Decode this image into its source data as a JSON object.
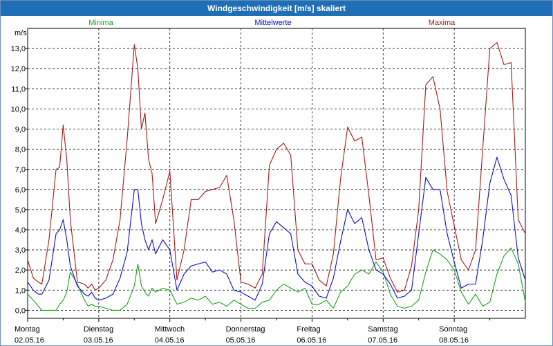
{
  "window": {
    "title": "Windgeschwindigkeit [m/s] skaliert"
  },
  "colors": {
    "minima": "#1aa31a",
    "mittel": "#0a0ad0",
    "maxima": "#a81818",
    "title_bg": "#1f6fb6"
  },
  "chart_data": {
    "type": "line",
    "title": "Windgeschwindigkeit [m/s] skaliert",
    "ylabel": "m/s",
    "xlabel": "",
    "ylim": [
      -0.4,
      14.0
    ],
    "yticks": [
      "0,0",
      "1,0",
      "2,0",
      "3,0",
      "4,0",
      "5,0",
      "6,0",
      "7,0",
      "8,0",
      "9,0",
      "10,0",
      "11,0",
      "12,0",
      "13,0"
    ],
    "ytick_values": [
      0,
      1,
      2,
      3,
      4,
      5,
      6,
      7,
      8,
      9,
      10,
      11,
      12,
      13
    ],
    "grid": true,
    "days": [
      {
        "name": "Montag",
        "date": "02.05.16"
      },
      {
        "name": "Dienstag",
        "date": "03.05.16"
      },
      {
        "name": "Mittwoch",
        "date": "04.05.16"
      },
      {
        "name": "Donnerstag",
        "date": "05.05.16"
      },
      {
        "name": "Freitag",
        "date": "06.05.16"
      },
      {
        "name": "Samstag",
        "date": "07.05.16"
      },
      {
        "name": "Sonntag",
        "date": "08.05.16"
      }
    ],
    "xlim": [
      0,
      7
    ],
    "series": [
      {
        "name": "Minima",
        "color": "#1aa31a",
        "x": [
          0,
          0.08,
          0.15,
          0.2,
          0.3,
          0.4,
          0.45,
          0.5,
          0.55,
          0.6,
          0.7,
          0.8,
          0.85,
          0.9,
          0.95,
          1.0,
          1.1,
          1.2,
          1.3,
          1.4,
          1.5,
          1.55,
          1.6,
          1.65,
          1.7,
          1.75,
          1.8,
          1.9,
          2.0,
          2.1,
          2.2,
          2.3,
          2.4,
          2.5,
          2.6,
          2.7,
          2.8,
          2.9,
          3.0,
          3.1,
          3.2,
          3.3,
          3.4,
          3.5,
          3.6,
          3.7,
          3.8,
          3.9,
          4.0,
          4.1,
          4.2,
          4.3,
          4.4,
          4.5,
          4.6,
          4.7,
          4.8,
          4.9,
          5.0,
          5.1,
          5.2,
          5.3,
          5.4,
          5.5,
          5.6,
          5.7,
          5.8,
          5.9,
          6.0,
          6.1,
          6.2,
          6.3,
          6.4,
          6.5,
          6.6,
          6.7,
          6.8,
          6.9,
          7.0
        ],
        "y": [
          0.8,
          0.5,
          0.2,
          0,
          0,
          0,
          0.3,
          0.5,
          0.9,
          1.9,
          1.3,
          0.5,
          0.2,
          0.3,
          0.2,
          0.2,
          0.1,
          0,
          0,
          0.3,
          1.2,
          2.3,
          1.2,
          0.9,
          0.7,
          1.1,
          0.9,
          1.1,
          1.0,
          0.3,
          0.4,
          0.6,
          0.5,
          0.7,
          0.3,
          0.4,
          0.2,
          0.5,
          0.3,
          0.1,
          0.1,
          0.4,
          0.5,
          1.0,
          1.3,
          1.1,
          0.9,
          1.1,
          0.3,
          0.3,
          0.5,
          0.1,
          0.9,
          1.2,
          1.8,
          2.0,
          1.8,
          2.4,
          1.9,
          0.8,
          0.2,
          0.1,
          0.2,
          0.5,
          1.9,
          3.0,
          2.8,
          2.5,
          2.0,
          0.9,
          0.3,
          0.8,
          0.2,
          0.4,
          1.8,
          2.7,
          3.1,
          2.3,
          0.4
        ]
      },
      {
        "name": "Mittelwerte",
        "color": "#0a0ad0",
        "x": [
          0,
          0.08,
          0.15,
          0.2,
          0.3,
          0.4,
          0.45,
          0.5,
          0.55,
          0.6,
          0.7,
          0.8,
          0.85,
          0.9,
          0.95,
          1.0,
          1.1,
          1.2,
          1.3,
          1.4,
          1.5,
          1.55,
          1.6,
          1.65,
          1.7,
          1.75,
          1.8,
          1.9,
          2.0,
          2.1,
          2.2,
          2.3,
          2.4,
          2.5,
          2.6,
          2.7,
          2.8,
          2.9,
          3.0,
          3.1,
          3.2,
          3.3,
          3.4,
          3.5,
          3.6,
          3.7,
          3.8,
          3.9,
          4.0,
          4.1,
          4.2,
          4.3,
          4.4,
          4.5,
          4.6,
          4.7,
          4.8,
          4.9,
          5.0,
          5.1,
          5.2,
          5.3,
          5.4,
          5.5,
          5.6,
          5.7,
          5.8,
          5.9,
          6.0,
          6.1,
          6.2,
          6.3,
          6.4,
          6.5,
          6.6,
          6.7,
          6.8,
          6.9,
          7.0
        ],
        "y": [
          1.4,
          1.0,
          0.8,
          0.8,
          1.5,
          3.8,
          4.0,
          4.5,
          3.5,
          2.2,
          1.2,
          0.8,
          0.7,
          0.9,
          0.6,
          0.5,
          0.6,
          0.8,
          1.6,
          2.9,
          6.0,
          6.0,
          4.3,
          3.5,
          3.0,
          3.5,
          2.8,
          3.5,
          3.0,
          1.0,
          1.8,
          2.2,
          2.3,
          2.4,
          1.9,
          2.0,
          1.8,
          1.0,
          0.9,
          0.7,
          0.5,
          1.3,
          3.8,
          4.4,
          4.1,
          3.8,
          1.8,
          1.4,
          1.2,
          0.7,
          0.6,
          1.6,
          3.4,
          5.0,
          4.3,
          4.6,
          3.0,
          2.0,
          1.8,
          1.3,
          0.6,
          0.7,
          1.0,
          3.8,
          6.6,
          6.0,
          6.0,
          3.8,
          2.4,
          1.1,
          1.3,
          1.3,
          3.5,
          6.3,
          7.6,
          6.5,
          5.7,
          2.6,
          1.5
        ]
      },
      {
        "name": "Maxima",
        "color": "#a81818",
        "x": [
          0,
          0.08,
          0.15,
          0.2,
          0.3,
          0.4,
          0.45,
          0.5,
          0.55,
          0.6,
          0.7,
          0.8,
          0.85,
          0.9,
          0.95,
          1.0,
          1.1,
          1.2,
          1.3,
          1.4,
          1.5,
          1.55,
          1.6,
          1.65,
          1.7,
          1.75,
          1.8,
          1.9,
          2.0,
          2.1,
          2.2,
          2.3,
          2.4,
          2.5,
          2.6,
          2.7,
          2.8,
          2.9,
          3.0,
          3.1,
          3.2,
          3.3,
          3.4,
          3.5,
          3.6,
          3.7,
          3.8,
          3.9,
          4.0,
          4.1,
          4.2,
          4.3,
          4.4,
          4.5,
          4.6,
          4.7,
          4.8,
          4.9,
          5.0,
          5.1,
          5.2,
          5.3,
          5.4,
          5.5,
          5.6,
          5.7,
          5.8,
          5.9,
          6.0,
          6.1,
          6.2,
          6.3,
          6.4,
          6.5,
          6.6,
          6.7,
          6.8,
          6.9,
          7.0
        ],
        "y": [
          2.5,
          1.6,
          1.4,
          1.3,
          3.5,
          7.0,
          7.1,
          9.2,
          7.5,
          4.5,
          1.4,
          1.3,
          1.1,
          1.3,
          1.0,
          1.1,
          1.5,
          2.5,
          4.5,
          8.5,
          13.2,
          12.0,
          9.0,
          9.8,
          7.5,
          6.8,
          4.3,
          5.5,
          6.9,
          1.5,
          3.0,
          5.5,
          5.5,
          5.9,
          6.0,
          6.1,
          6.7,
          4.5,
          1.4,
          1.3,
          1.1,
          1.8,
          7.2,
          8.0,
          8.3,
          7.7,
          3.0,
          2.3,
          2.3,
          1.5,
          1.2,
          2.8,
          6.5,
          9.1,
          8.4,
          8.6,
          5.7,
          2.5,
          2.6,
          1.6,
          0.9,
          1.0,
          2.2,
          5.0,
          11.2,
          11.6,
          10.0,
          5.9,
          4.2,
          2.5,
          2.0,
          3.0,
          8.0,
          13.0,
          13.3,
          12.2,
          12.3,
          4.5,
          3.8
        ]
      }
    ]
  }
}
